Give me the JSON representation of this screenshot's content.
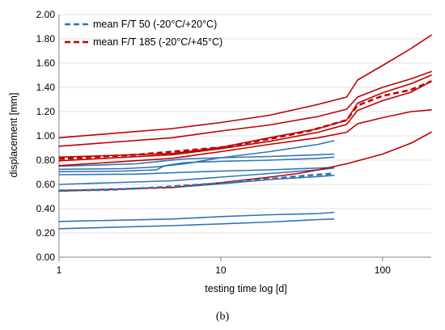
{
  "chart_data": {
    "type": "line",
    "title": "",
    "xlabel": "testing time log [d]",
    "ylabel": "displacement [mm]",
    "xscale": "log",
    "xlim": [
      1,
      200
    ],
    "ylim": [
      0,
      2
    ],
    "xticks": [
      {
        "value": 1,
        "label": "1"
      },
      {
        "value": 10,
        "label": "10"
      },
      {
        "value": 100,
        "label": "100"
      }
    ],
    "yticks": [
      {
        "value": 0,
        "label": "0.00"
      },
      {
        "value": 0.2,
        "label": "0.20"
      },
      {
        "value": 0.4,
        "label": "0.40"
      },
      {
        "value": 0.6,
        "label": "0.60"
      },
      {
        "value": 0.8,
        "label": "0.80"
      },
      {
        "value": 1.0,
        "label": "1.00"
      },
      {
        "value": 1.2,
        "label": "1.20"
      },
      {
        "value": 1.4,
        "label": "1.40"
      },
      {
        "value": 1.6,
        "label": "1.60"
      },
      {
        "value": 1.8,
        "label": "1.80"
      },
      {
        "value": 2.0,
        "label": "2.00"
      }
    ],
    "grid": "horizontal",
    "legend_position": "top-left",
    "colors": {
      "blue": "#2E75B6",
      "red": "#C00000"
    },
    "caption": "(b)",
    "series": [
      {
        "name": "mean F/T 50 (-20°C/+20°C)",
        "legend": true,
        "color": "#2E75B6",
        "style": "dashed",
        "points": [
          [
            1,
            0.55
          ],
          [
            2,
            0.555
          ],
          [
            4,
            0.575
          ],
          [
            10,
            0.61
          ],
          [
            20,
            0.645
          ],
          [
            35,
            0.675
          ],
          [
            50,
            0.69
          ]
        ]
      },
      {
        "name": "mean F/T 185 (-20°C/+45°C)",
        "legend": true,
        "color": "#C00000",
        "style": "dashed",
        "points": [
          [
            1,
            0.81
          ],
          [
            3,
            0.845
          ],
          [
            10,
            0.905
          ],
          [
            20,
            0.975
          ],
          [
            35,
            1.04
          ],
          [
            60,
            1.13
          ],
          [
            70,
            1.25
          ],
          [
            100,
            1.33
          ],
          [
            150,
            1.38
          ],
          [
            200,
            1.45
          ]
        ]
      },
      {
        "color": "#2E75B6",
        "style": "solid",
        "points": [
          [
            1,
            0.235
          ],
          [
            5,
            0.26
          ],
          [
            10,
            0.275
          ],
          [
            20,
            0.29
          ],
          [
            40,
            0.31
          ],
          [
            50,
            0.315
          ]
        ]
      },
      {
        "color": "#2E75B6",
        "style": "solid",
        "points": [
          [
            1,
            0.295
          ],
          [
            5,
            0.315
          ],
          [
            10,
            0.335
          ],
          [
            20,
            0.35
          ],
          [
            40,
            0.36
          ],
          [
            50,
            0.37
          ]
        ]
      },
      {
        "color": "#2E75B6",
        "style": "solid",
        "points": [
          [
            1,
            0.55
          ],
          [
            5,
            0.575
          ],
          [
            10,
            0.605
          ],
          [
            20,
            0.64
          ],
          [
            40,
            0.665
          ],
          [
            50,
            0.675
          ]
        ]
      },
      {
        "color": "#2E75B6",
        "style": "solid",
        "points": [
          [
            1,
            0.6
          ],
          [
            5,
            0.63
          ],
          [
            10,
            0.66
          ],
          [
            20,
            0.69
          ],
          [
            40,
            0.72
          ],
          [
            50,
            0.735
          ]
        ]
      },
      {
        "color": "#2E75B6",
        "style": "solid",
        "points": [
          [
            1,
            0.68
          ],
          [
            3,
            0.685
          ],
          [
            6,
            0.7
          ],
          [
            10,
            0.71
          ],
          [
            20,
            0.72
          ],
          [
            40,
            0.735
          ],
          [
            50,
            0.74
          ]
        ]
      },
      {
        "color": "#2E75B6",
        "style": "solid",
        "points": [
          [
            1,
            0.705
          ],
          [
            2.5,
            0.71
          ],
          [
            4,
            0.72
          ],
          [
            4.5,
            0.755
          ],
          [
            6,
            0.78
          ],
          [
            10,
            0.79
          ],
          [
            20,
            0.8
          ],
          [
            40,
            0.815
          ],
          [
            50,
            0.825
          ]
        ]
      },
      {
        "color": "#2E75B6",
        "style": "solid",
        "points": [
          [
            1,
            0.725
          ],
          [
            2.5,
            0.73
          ],
          [
            3.5,
            0.74
          ],
          [
            4,
            0.745
          ],
          [
            6,
            0.77
          ],
          [
            10,
            0.82
          ],
          [
            20,
            0.87
          ],
          [
            40,
            0.93
          ],
          [
            50,
            0.96
          ]
        ]
      },
      {
        "color": "#2E75B6",
        "style": "solid",
        "points": [
          [
            1,
            0.75
          ],
          [
            3,
            0.77
          ],
          [
            4.5,
            0.795
          ],
          [
            6,
            0.81
          ],
          [
            10,
            0.82
          ],
          [
            20,
            0.83
          ],
          [
            40,
            0.845
          ],
          [
            50,
            0.85
          ]
        ]
      },
      {
        "color": "#C00000",
        "style": "solid",
        "points": [
          [
            1,
            0.545
          ],
          [
            5,
            0.575
          ],
          [
            10,
            0.615
          ],
          [
            20,
            0.66
          ],
          [
            30,
            0.69
          ],
          [
            40,
            0.72
          ],
          [
            60,
            0.77
          ],
          [
            100,
            0.85
          ],
          [
            150,
            0.94
          ],
          [
            200,
            1.03
          ]
        ]
      },
      {
        "color": "#C00000",
        "style": "solid",
        "points": [
          [
            1,
            0.755
          ],
          [
            5,
            0.815
          ],
          [
            10,
            0.87
          ],
          [
            20,
            0.93
          ],
          [
            40,
            0.985
          ],
          [
            60,
            1.03
          ],
          [
            70,
            1.1
          ],
          [
            100,
            1.15
          ],
          [
            150,
            1.2
          ],
          [
            200,
            1.215
          ]
        ]
      },
      {
        "color": "#C00000",
        "style": "solid",
        "points": [
          [
            1,
            0.795
          ],
          [
            5,
            0.845
          ],
          [
            10,
            0.895
          ],
          [
            20,
            0.955
          ],
          [
            40,
            1.03
          ],
          [
            60,
            1.095
          ],
          [
            70,
            1.21
          ],
          [
            100,
            1.29
          ],
          [
            150,
            1.36
          ],
          [
            200,
            1.45
          ]
        ]
      },
      {
        "color": "#C00000",
        "style": "solid",
        "points": [
          [
            1,
            0.825
          ],
          [
            5,
            0.855
          ],
          [
            10,
            0.905
          ],
          [
            20,
            0.985
          ],
          [
            40,
            1.06
          ],
          [
            60,
            1.13
          ],
          [
            70,
            1.27
          ],
          [
            100,
            1.355
          ],
          [
            150,
            1.43
          ],
          [
            200,
            1.5
          ]
        ]
      },
      {
        "color": "#C00000",
        "style": "solid",
        "points": [
          [
            1,
            0.915
          ],
          [
            5,
            0.985
          ],
          [
            10,
            1.04
          ],
          [
            20,
            1.09
          ],
          [
            40,
            1.16
          ],
          [
            60,
            1.22
          ],
          [
            70,
            1.32
          ],
          [
            100,
            1.4
          ],
          [
            150,
            1.47
          ],
          [
            200,
            1.53
          ]
        ]
      },
      {
        "color": "#C00000",
        "style": "solid",
        "points": [
          [
            1,
            0.985
          ],
          [
            5,
            1.06
          ],
          [
            10,
            1.11
          ],
          [
            20,
            1.17
          ],
          [
            40,
            1.26
          ],
          [
            60,
            1.32
          ],
          [
            70,
            1.46
          ],
          [
            100,
            1.58
          ],
          [
            150,
            1.72
          ],
          [
            200,
            1.83
          ]
        ]
      }
    ]
  }
}
